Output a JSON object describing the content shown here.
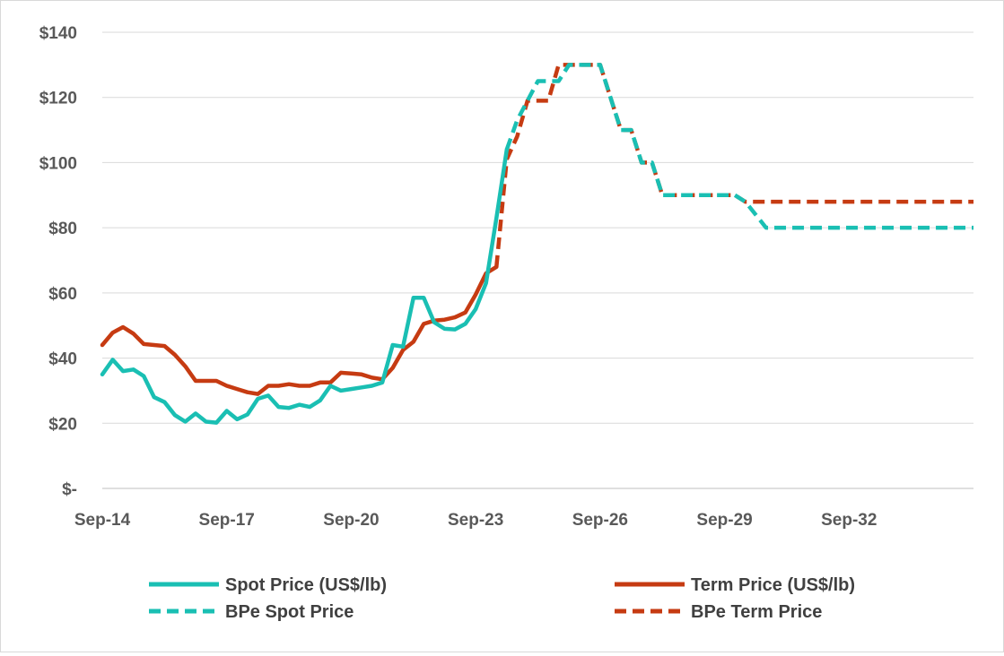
{
  "chart_data": {
    "type": "line",
    "title": "",
    "xlabel": "",
    "ylabel": "",
    "x_tick_labels": [
      "Sep-14",
      "Sep-17",
      "Sep-20",
      "Sep-23",
      "Sep-26",
      "Sep-29",
      "Sep-32"
    ],
    "x_tick_dates": [
      "2014-09",
      "2017-09",
      "2020-09",
      "2023-09",
      "2026-09",
      "2029-09",
      "2032-09"
    ],
    "x_range": [
      "2014-09",
      "2035-09"
    ],
    "y_tick_labels": [
      "$-",
      "$20",
      "$40",
      "$60",
      "$80",
      "$100",
      "$120",
      "$140"
    ],
    "y_tick_values": [
      0,
      20,
      40,
      60,
      80,
      100,
      120,
      140
    ],
    "ylim": [
      0,
      140
    ],
    "grid": "horizontal",
    "legend_position": "bottom",
    "series": [
      {
        "name": "Spot Price (US$/lb)",
        "color": "#1abfb3",
        "style": "solid",
        "points": [
          [
            "2014-09",
            35
          ],
          [
            "2014-12",
            39.5
          ],
          [
            "2015-03",
            36
          ],
          [
            "2015-06",
            36.5
          ],
          [
            "2015-09",
            34.5
          ],
          [
            "2015-12",
            28
          ],
          [
            "2016-03",
            26.5
          ],
          [
            "2016-06",
            22.5
          ],
          [
            "2016-09",
            20.5
          ],
          [
            "2016-12",
            23
          ],
          [
            "2017-03",
            20.5
          ],
          [
            "2017-06",
            20.2
          ],
          [
            "2017-09",
            23.8
          ],
          [
            "2017-12",
            21.2
          ],
          [
            "2018-03",
            22.7
          ],
          [
            "2018-06",
            27.5
          ],
          [
            "2018-09",
            28.5
          ],
          [
            "2018-12",
            25
          ],
          [
            "2019-03",
            24.7
          ],
          [
            "2019-06",
            25.7
          ],
          [
            "2019-09",
            25
          ],
          [
            "2019-12",
            27
          ],
          [
            "2020-03",
            31.5
          ],
          [
            "2020-06",
            30
          ],
          [
            "2020-09",
            30.5
          ],
          [
            "2020-12",
            31
          ],
          [
            "2021-03",
            31.5
          ],
          [
            "2021-06",
            32.5
          ],
          [
            "2021-09",
            44
          ],
          [
            "2021-12",
            43.5
          ],
          [
            "2022-03",
            58.5
          ],
          [
            "2022-06",
            58.5
          ],
          [
            "2022-09",
            51
          ],
          [
            "2022-12",
            49
          ],
          [
            "2023-03",
            48.8
          ],
          [
            "2023-06",
            50.5
          ],
          [
            "2023-09",
            55
          ],
          [
            "2023-12",
            63
          ],
          [
            "2024-03",
            83
          ],
          [
            "2024-06",
            104
          ]
        ]
      },
      {
        "name": "Term Price (US$/lb)",
        "color": "#c63b12",
        "style": "solid",
        "points": [
          [
            "2014-09",
            44
          ],
          [
            "2014-12",
            47.8
          ],
          [
            "2015-03",
            49.5
          ],
          [
            "2015-06",
            47.5
          ],
          [
            "2015-09",
            44.3
          ],
          [
            "2015-12",
            44
          ],
          [
            "2016-03",
            43.7
          ],
          [
            "2016-06",
            41
          ],
          [
            "2016-09",
            37.5
          ],
          [
            "2016-12",
            33
          ],
          [
            "2017-03",
            33
          ],
          [
            "2017-06",
            33
          ],
          [
            "2017-09",
            31.5
          ],
          [
            "2017-12",
            30.5
          ],
          [
            "2018-03",
            29.5
          ],
          [
            "2018-06",
            29
          ],
          [
            "2018-09",
            31.5
          ],
          [
            "2018-12",
            31.5
          ],
          [
            "2019-03",
            32
          ],
          [
            "2019-06",
            31.5
          ],
          [
            "2019-09",
            31.5
          ],
          [
            "2019-12",
            32.5
          ],
          [
            "2020-03",
            32.5
          ],
          [
            "2020-06",
            35.5
          ],
          [
            "2020-09",
            35.3
          ],
          [
            "2020-12",
            35
          ],
          [
            "2021-03",
            34
          ],
          [
            "2021-06",
            33.5
          ],
          [
            "2021-09",
            37
          ],
          [
            "2021-12",
            42.5
          ],
          [
            "2022-03",
            45
          ],
          [
            "2022-06",
            50.5
          ],
          [
            "2022-09",
            51.5
          ],
          [
            "2022-12",
            51.8
          ],
          [
            "2023-03",
            52.5
          ],
          [
            "2023-06",
            54
          ],
          [
            "2023-09",
            59.5
          ],
          [
            "2023-12",
            66
          ],
          [
            "2024-03",
            68
          ]
        ]
      },
      {
        "name": "BPe Spot Price",
        "color": "#1abfb3",
        "style": "dashed",
        "points": [
          [
            "2024-06",
            104
          ],
          [
            "2024-09",
            113
          ],
          [
            "2024-12",
            119
          ],
          [
            "2025-03",
            125
          ],
          [
            "2025-06",
            125
          ],
          [
            "2025-09",
            125
          ],
          [
            "2025-12",
            130
          ],
          [
            "2026-03",
            130
          ],
          [
            "2026-06",
            130
          ],
          [
            "2026-09",
            130
          ],
          [
            "2026-12",
            120
          ],
          [
            "2027-03",
            110
          ],
          [
            "2027-06",
            110
          ],
          [
            "2027-09",
            100
          ],
          [
            "2027-12",
            100
          ],
          [
            "2028-03",
            90
          ],
          [
            "2028-06",
            90
          ],
          [
            "2028-09",
            90
          ],
          [
            "2028-12",
            90
          ],
          [
            "2029-03",
            90
          ],
          [
            "2029-06",
            90
          ],
          [
            "2029-09",
            90
          ],
          [
            "2029-12",
            90
          ],
          [
            "2030-03",
            88
          ],
          [
            "2030-06",
            84
          ],
          [
            "2030-09",
            80
          ],
          [
            "2030-12",
            80
          ],
          [
            "2031-06",
            80
          ],
          [
            "2032-06",
            80
          ],
          [
            "2033-06",
            80
          ],
          [
            "2034-06",
            80
          ],
          [
            "2035-09",
            80
          ]
        ]
      },
      {
        "name": "BPe Term Price",
        "color": "#c63b12",
        "style": "dashed",
        "points": [
          [
            "2024-03",
            68
          ],
          [
            "2024-06",
            101
          ],
          [
            "2024-09",
            108
          ],
          [
            "2024-12",
            119
          ],
          [
            "2025-03",
            119
          ],
          [
            "2025-06",
            119
          ],
          [
            "2025-09",
            130
          ],
          [
            "2025-12",
            130
          ],
          [
            "2026-03",
            130
          ],
          [
            "2026-06",
            130
          ],
          [
            "2026-09",
            130
          ],
          [
            "2026-12",
            120
          ],
          [
            "2027-03",
            110
          ],
          [
            "2027-06",
            110
          ],
          [
            "2027-09",
            100
          ],
          [
            "2027-12",
            100
          ],
          [
            "2028-03",
            90
          ],
          [
            "2028-06",
            90
          ],
          [
            "2028-09",
            90
          ],
          [
            "2028-12",
            90
          ],
          [
            "2029-03",
            90
          ],
          [
            "2029-06",
            90
          ],
          [
            "2029-09",
            90
          ],
          [
            "2029-12",
            90
          ],
          [
            "2030-03",
            88
          ],
          [
            "2030-06",
            88
          ],
          [
            "2031-06",
            88
          ],
          [
            "2032-06",
            88
          ],
          [
            "2033-06",
            88
          ],
          [
            "2034-06",
            88
          ],
          [
            "2035-09",
            88
          ]
        ]
      }
    ]
  }
}
